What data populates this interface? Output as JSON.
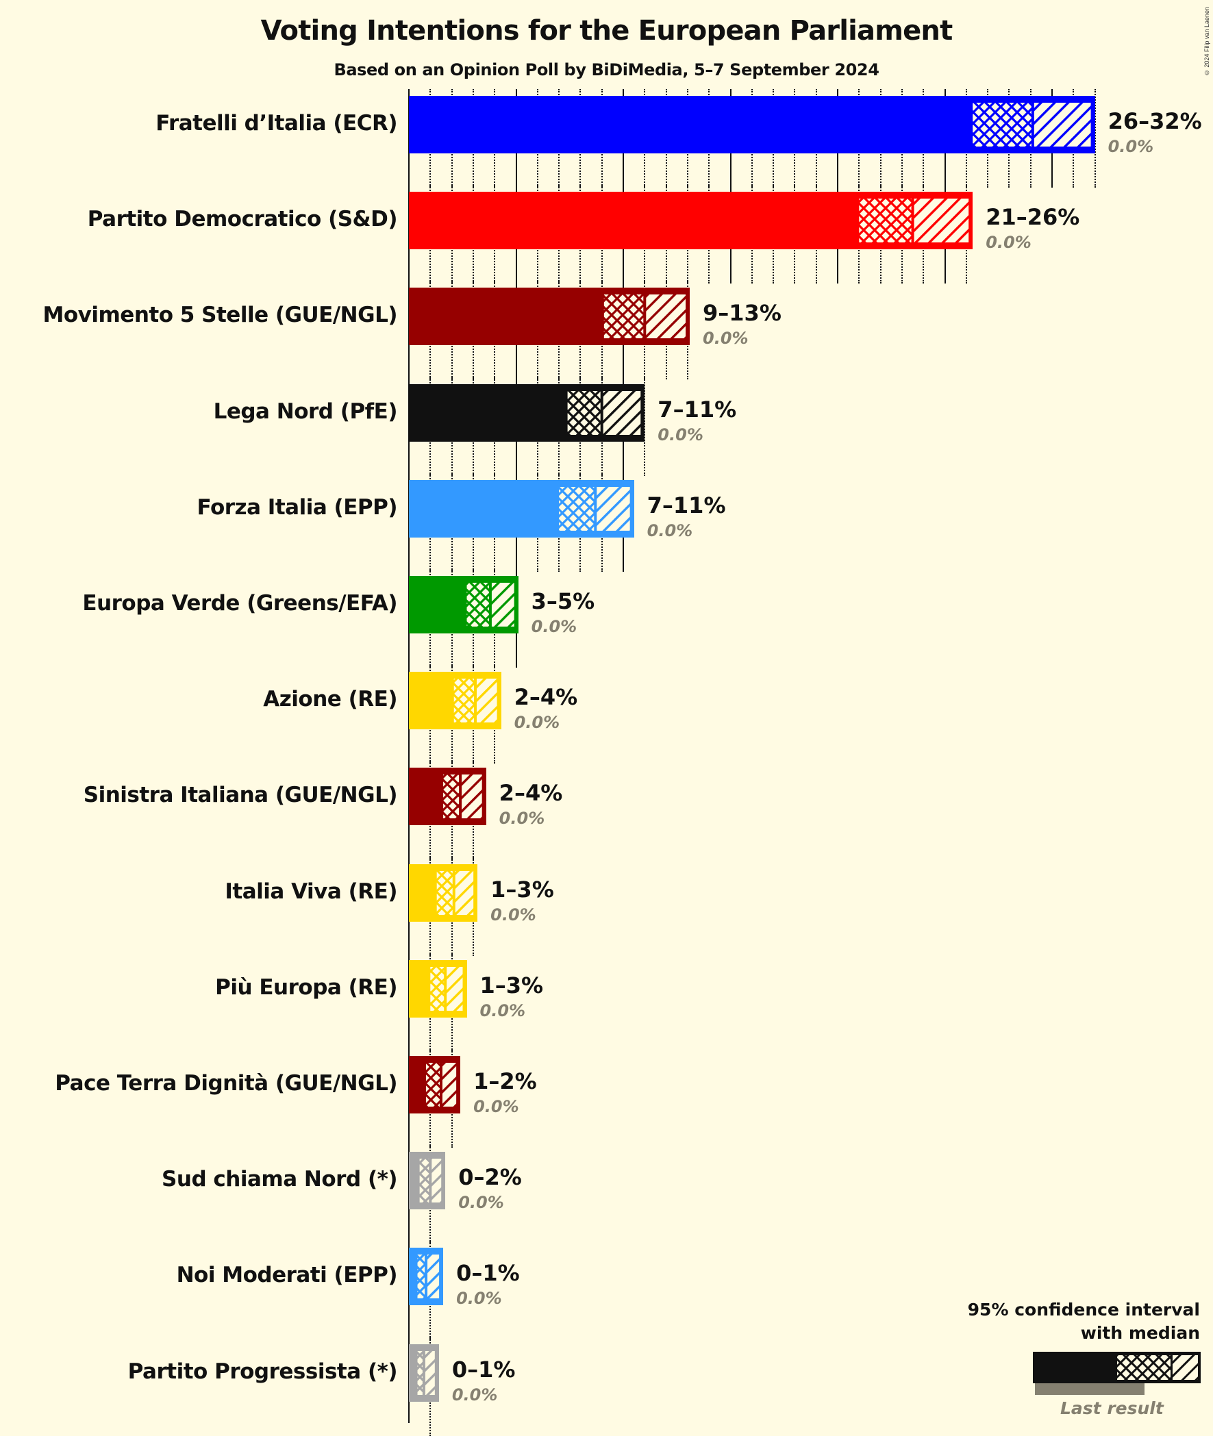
{
  "header": {
    "title": "Voting Intentions for the European Parliament",
    "subtitle": "Based on an Opinion Poll by BiDiMedia, 5–7 September 2024",
    "copyright": "© 2024 Filip van Laenen"
  },
  "legend": {
    "title_line1": "95% confidence interval",
    "title_line2": "with median",
    "last_result_label": "Last result"
  },
  "chart_data": {
    "type": "bar",
    "orientation": "horizontal",
    "title": "Voting Intentions for the European Parliament",
    "subtitle": "Based on an Opinion Poll by BiDiMedia, 5–7 September 2024",
    "xlabel": "",
    "ylabel": "",
    "xlim": [
      0,
      33
    ],
    "grid": {
      "major_every_pct": 5,
      "minor_every_pct": 1,
      "major_style": "solid",
      "minor_style": "dotted"
    },
    "legend_position": "bottom-right",
    "series_description": "Each bar: solid = up to lower part of 95% CI, crosshatch = lower CI to median, diagonal hatch = median to upper CI; last result shown in grey italic below range label",
    "categories": [
      "Fratelli d’Italia (ECR)",
      "Partito Democratico (S&D)",
      "Movimento 5 Stelle (GUE/NGL)",
      "Lega Nord (PfE)",
      "Forza Italia (EPP)",
      "Europa Verde (Greens/EFA)",
      "Azione (RE)",
      "Sinistra Italiana (GUE/NGL)",
      "Italia Viva (RE)",
      "Più Europa (RE)",
      "Pace Terra Dignità (GUE/NGL)",
      "Sud chiama Nord (*)",
      "Noi Moderati (EPP)",
      "Partito Progressista (*)"
    ],
    "rows": [
      {
        "label": "Fratelli d’Italia (ECR)",
        "color": "#0000ff",
        "solid_end": 26.3,
        "median": 29.1,
        "upper": 32.0,
        "range_label": "26–32%",
        "last_result": "0.0%"
      },
      {
        "label": "Partito Democratico (S&D)",
        "color": "#ff0000",
        "solid_end": 21.0,
        "median": 23.5,
        "upper": 26.3,
        "range_label": "21–26%",
        "last_result": "0.0%"
      },
      {
        "label": "Movimento 5 Stelle (GUE/NGL)",
        "color": "#960000",
        "solid_end": 9.1,
        "median": 11.0,
        "upper": 13.1,
        "range_label": "9–13%",
        "last_result": "0.0%"
      },
      {
        "label": "Lega Nord (PfE)",
        "color": "#111111",
        "solid_end": 7.4,
        "median": 9.0,
        "upper": 11.0,
        "range_label": "7–11%",
        "last_result": "0.0%"
      },
      {
        "label": "Forza Italia (EPP)",
        "color": "#3399ff",
        "solid_end": 7.0,
        "median": 8.7,
        "upper": 10.5,
        "range_label": "7–11%",
        "last_result": "0.0%"
      },
      {
        "label": "Europa Verde (Greens/EFA)",
        "color": "#009900",
        "solid_end": 2.7,
        "median": 3.8,
        "upper": 5.1,
        "range_label": "3–5%",
        "last_result": "0.0%"
      },
      {
        "label": "Azione (RE)",
        "color": "#ffd700",
        "solid_end": 2.1,
        "median": 3.1,
        "upper": 4.3,
        "range_label": "2–4%",
        "last_result": "0.0%"
      },
      {
        "label": "Sinistra Italiana (GUE/NGL)",
        "color": "#960000",
        "solid_end": 1.6,
        "median": 2.4,
        "upper": 3.6,
        "range_label": "2–4%",
        "last_result": "0.0%"
      },
      {
        "label": "Italia Viva (RE)",
        "color": "#ffd700",
        "solid_end": 1.3,
        "median": 2.1,
        "upper": 3.2,
        "range_label": "1–3%",
        "last_result": "0.0%"
      },
      {
        "label": "Più Europa (RE)",
        "color": "#ffd700",
        "solid_end": 1.0,
        "median": 1.7,
        "upper": 2.7,
        "range_label": "1–3%",
        "last_result": "0.0%"
      },
      {
        "label": "Pace Terra Dignità (GUE/NGL)",
        "color": "#960000",
        "solid_end": 0.8,
        "median": 1.5,
        "upper": 2.4,
        "range_label": "1–2%",
        "last_result": "0.0%"
      },
      {
        "label": "Sud chiama Nord (*)",
        "color": "#a6a6a6",
        "solid_end": 0.5,
        "median": 1.0,
        "upper": 1.7,
        "range_label": "0–2%",
        "last_result": "0.0%"
      },
      {
        "label": "Noi Moderati (EPP)",
        "color": "#3399ff",
        "solid_end": 0.4,
        "median": 0.8,
        "upper": 1.6,
        "range_label": "0–1%",
        "last_result": "0.0%"
      },
      {
        "label": "Partito Progressista (*)",
        "color": "#a6a6a6",
        "solid_end": 0.4,
        "median": 0.7,
        "upper": 1.4,
        "range_label": "0–1%",
        "last_result": "0.0%"
      }
    ]
  }
}
